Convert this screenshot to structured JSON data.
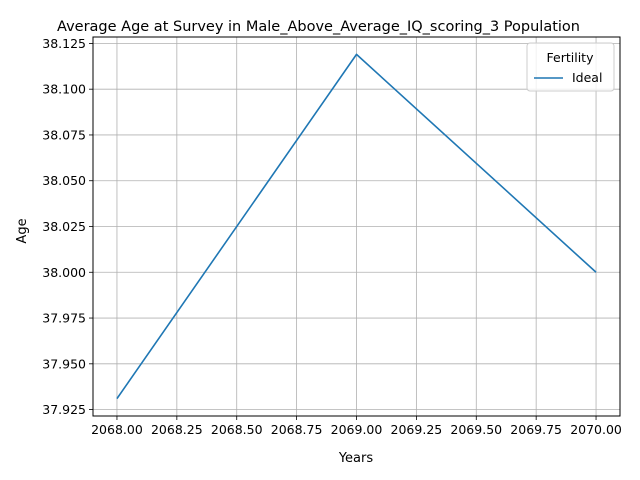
{
  "chart_data": {
    "type": "line",
    "title": "Average Age at Survey in Male_Above_Average_IQ_scoring_3 Population",
    "xlabel": "Years",
    "ylabel": "Age",
    "x": [
      2068,
      2069,
      2070
    ],
    "series": [
      {
        "name": "Ideal",
        "values": [
          37.931,
          38.119,
          38.0
        ],
        "color": "#1f77b4"
      }
    ],
    "xlim": [
      2067.9,
      2070.1
    ],
    "ylim": [
      37.9215,
      38.1285
    ],
    "xticks": [
      2068.0,
      2068.25,
      2068.5,
      2068.75,
      2069.0,
      2069.25,
      2069.5,
      2069.75,
      2070.0
    ],
    "xtick_labels": [
      "2068.00",
      "2068.25",
      "2068.50",
      "2068.75",
      "2069.00",
      "2069.25",
      "2069.50",
      "2069.75",
      "2070.00"
    ],
    "yticks": [
      37.925,
      37.95,
      37.975,
      38.0,
      38.025,
      38.05,
      38.075,
      38.1,
      38.125
    ],
    "ytick_labels": [
      "37.925",
      "37.950",
      "37.975",
      "38.000",
      "38.025",
      "38.050",
      "38.075",
      "38.100",
      "38.125"
    ],
    "grid": true,
    "legend": {
      "title": "Fertility",
      "placement": "top-right"
    }
  }
}
